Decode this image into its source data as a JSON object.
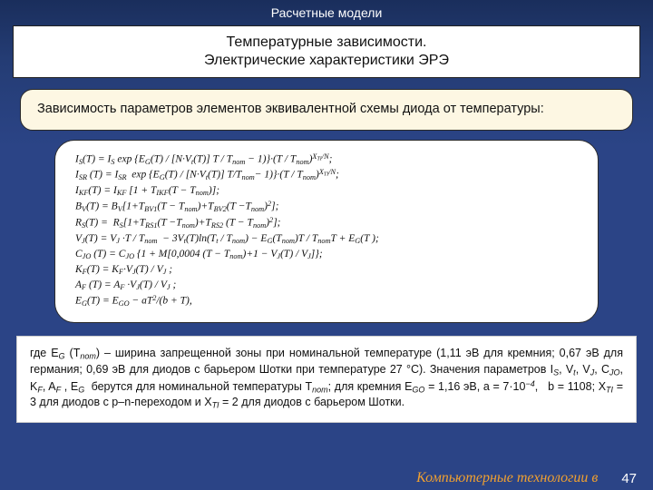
{
  "header": {
    "title": "Расчетные модели"
  },
  "title": {
    "line1": "Температурные зависимости.",
    "line2": "Электрические характеристики ЭРЭ"
  },
  "intro": "Зависимость параметров элементов эквивалентной схемы диода от температуры:",
  "formulas": {
    "f1": "I_S(T) = I_S · exp {E_G(T) / [N·V_t(T)] · T / T_nom − 1)} · (T / T_nom)^{X_TI/N};",
    "f2": "I_SR(T) = I_SR · exp {E_G(T) / [N·V_t(T)] · T/T_nom − 1)} · (T / T_nom)^{X_TI/N};",
    "f3": "I_KF(T) = I_KF · [1 + T_IKF·(T − T_nom)];",
    "f4": "B_V(T) = B_V · [1 + T_BV1·(T − T_nom) + T_BV2·(T − T_nom)^2];",
    "f5": "R_S(T) =  R_S · [1 + T_RS1·(T − T_nom) + T_RS2·(T − T_nom)^2];",
    "f6": "V_J(T) = V_J · T / T_nom − 3V_t(T)·ln(T_t / T_nom) − E_G(T_nom)·T / T_nom·T + E_G(T);",
    "f7": "C_JO(T) = C_JO · {1 + M[0,0004·(T − T_nom) + 1 − V_J(T) / V_J]};",
    "f8": "K_F(T) = K_F · V_J(T) / V_J ;",
    "f9": "A_F(T) = A_F · V_J(T) / V_J ;",
    "f10": "E_G(T) = E_GO − aT^2/(b + T),"
  },
  "footnote": "где E_G (T_nom) – ширина запрещенной зоны при номинальной температуре (1,11 эВ для кремния; 0,67 эВ для германия; 0,69 эВ для диодов с барьером Шотки при температуре 27 °C). Значения параметров I_S, V_t, V_J, C_JO, K_F, A_F, E_G берутся для номинальной температуры T_nom; для кремния E_GO = 1,16 эВ, a = 7·10^−4, b = 1108; X_TI = 3 для диодов с p–n-переходом и X_TI = 2 для диодов с барьером Шотки.",
  "footer": {
    "text": "Компьютерные технологии в",
    "page": "47"
  },
  "colors": {
    "bg_top": "#1a2e5c",
    "bg_bottom": "#2b4486",
    "card_bg": "#fdf7e3",
    "formula_bg": "#ffffff",
    "footnote_bg": "#ffffff",
    "header_text": "#ffffff",
    "footer_text": "#f0a030",
    "page_num": "#ffffff",
    "border": "#2a2a2a"
  },
  "fonts": {
    "body": "Arial",
    "formula": "Times New Roman",
    "header_size_pt": 14,
    "title_size_pt": 16,
    "intro_size_pt": 14.5,
    "formula_size_pt": 11.5,
    "footnote_size_pt": 12.5,
    "footer_size_pt": 16
  }
}
